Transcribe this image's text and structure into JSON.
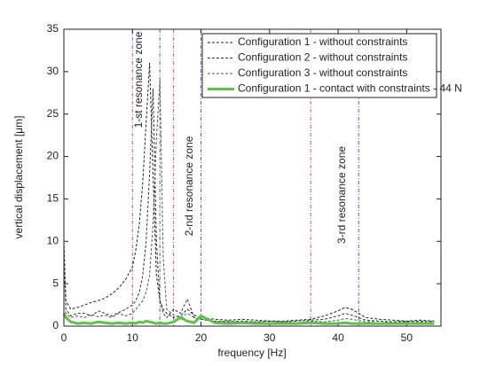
{
  "chart_data": {
    "type": "line",
    "xlabel": "frequency [Hz]",
    "ylabel": "vertical displacement [μm]",
    "xlim": [
      0,
      55
    ],
    "ylim": [
      0,
      35
    ],
    "xticks": [
      0,
      10,
      20,
      30,
      40,
      50
    ],
    "yticks": [
      0,
      5,
      10,
      15,
      20,
      25,
      30,
      35
    ],
    "grid": false,
    "legend": "upper right",
    "x": [
      0,
      0.3,
      1,
      2,
      3,
      4,
      5,
      6,
      7,
      8,
      9,
      10,
      10.5,
      11,
      11.5,
      12,
      12.5,
      13,
      13.5,
      14,
      14.5,
      15,
      16,
      17,
      18,
      19,
      20,
      22,
      24,
      26,
      28,
      30,
      32,
      34,
      36,
      38,
      40,
      41,
      42,
      44,
      46,
      48,
      50,
      52,
      54
    ],
    "series": [
      {
        "name": "Configuration 1 - without constraints",
        "color": "#222222",
        "style": "dashed",
        "values": [
          10,
          3,
          2,
          2.2,
          2.5,
          2.8,
          3,
          3.3,
          3.8,
          4.5,
          5.5,
          7,
          9,
          12,
          17,
          24,
          31,
          18,
          6,
          3,
          2,
          1.5,
          1,
          1.2,
          2,
          1.3,
          1,
          0.8,
          0.7,
          0.8,
          0.7,
          0.6,
          0.6,
          0.7,
          0.8,
          1.2,
          1.8,
          2.2,
          2,
          1,
          0.8,
          0.7,
          0.6,
          0.7,
          0.6
        ]
      },
      {
        "name": "Configuration 2 - without constraints",
        "color": "#333333",
        "style": "dashed",
        "values": [
          9,
          2,
          1.2,
          1.5,
          1.5,
          1.2,
          1.8,
          1.5,
          1.2,
          1.6,
          2,
          2.5,
          3,
          4,
          6,
          10,
          18,
          28,
          10,
          3,
          1.5,
          1,
          2,
          1.5,
          3.2,
          1,
          0.8,
          0.6,
          0.5,
          0.6,
          0.5,
          0.6,
          0.5,
          0.6,
          0.7,
          0.8,
          1.2,
          1.5,
          1.3,
          0.7,
          0.6,
          0.5,
          0.6,
          0.5,
          0.6
        ]
      },
      {
        "name": "Configuration 3 - without constraints",
        "color": "#555555",
        "style": "dashed",
        "values": [
          8,
          1.5,
          1,
          1.2,
          1,
          1.4,
          1.1,
          1.3,
          1,
          1.5,
          1.2,
          1.5,
          2,
          2.5,
          3,
          4,
          6,
          12,
          22,
          29,
          8,
          2,
          1.3,
          1,
          1.5,
          1,
          0.8,
          0.5,
          0.6,
          0.4,
          0.5,
          0.4,
          0.5,
          0.4,
          0.6,
          0.5,
          0.7,
          0.9,
          0.8,
          0.5,
          0.6,
          0.4,
          0.5,
          0.6,
          0.5
        ]
      },
      {
        "name": "Configuration 1 - contact with constraints - 44 N",
        "color": "#5fc04a",
        "style": "solid",
        "values": [
          1.5,
          1,
          0.5,
          0.3,
          0.4,
          0.3,
          0.5,
          0.4,
          0.3,
          0.4,
          0.3,
          0.4,
          0.3,
          0.5,
          0.4,
          0.6,
          0.5,
          0.4,
          0.3,
          0.4,
          0.3,
          0.3,
          0.5,
          1,
          0.6,
          0.4,
          1.2,
          0.4,
          0.3,
          0.4,
          0.3,
          0.3,
          0.3,
          0.3,
          0.4,
          0.3,
          0.3,
          0.4,
          0.3,
          0.3,
          0.3,
          0.3,
          0.3,
          0.3,
          0.3
        ]
      }
    ],
    "vlines": [
      {
        "x": 10,
        "color": "#d04aa8"
      },
      {
        "x": 14,
        "color": "#5a5ad0"
      },
      {
        "x": 16,
        "color": "#d04aa8"
      },
      {
        "x": 20,
        "color": "#5a5ad0"
      },
      {
        "x": 36,
        "color": "#d04aa8"
      },
      {
        "x": 43,
        "color": "#5a5ad0"
      }
    ],
    "annotations": [
      "1-st resonance zone",
      "2-nd resonance zone",
      "3-rd resonance zone"
    ]
  }
}
